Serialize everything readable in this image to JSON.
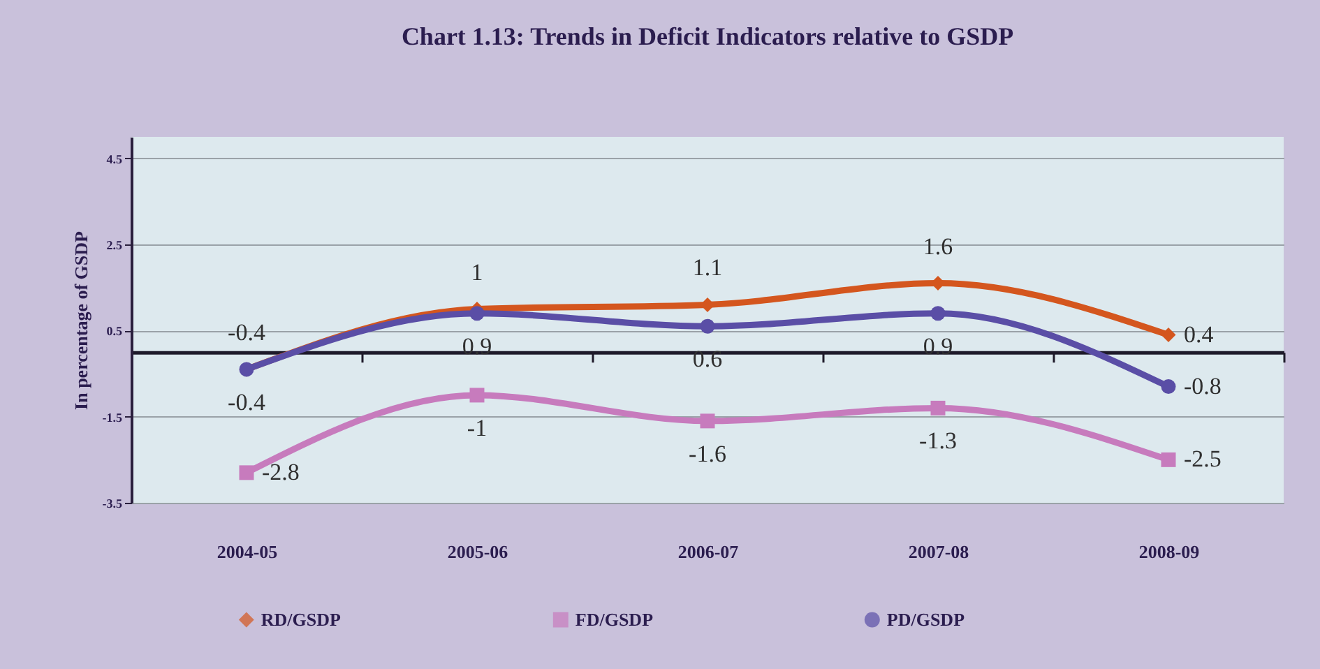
{
  "chart_data": {
    "type": "line",
    "title": "Chart 1.13: Trends in Deficit Indicators relative to GSDP",
    "ylabel": "In percentage of GSDP",
    "categories": [
      "2004-05",
      "2005-06",
      "2006-07",
      "2007-08",
      "2008-09"
    ],
    "series": [
      {
        "name": "RD/GSDP",
        "color": "#d4561e",
        "marker": "diamond",
        "values": [
          -0.4,
          1,
          1.1,
          1.6,
          0.4
        ]
      },
      {
        "name": "FD/GSDP",
        "color": "#c77bbd",
        "marker": "square",
        "values": [
          -2.8,
          -1,
          -1.6,
          -1.3,
          -2.5
        ]
      },
      {
        "name": "PD/GSDP",
        "color": "#5a4ea6",
        "marker": "circle",
        "values": [
          -0.4,
          0.9,
          0.6,
          0.9,
          -0.8
        ]
      }
    ],
    "ylim": [
      -3.5,
      5
    ],
    "yticks": [
      -3.5,
      -1.5,
      0.5,
      2.5,
      4.5
    ],
    "grid": "y",
    "legend": "bottom",
    "data_labels": true,
    "line_style": "solid"
  }
}
